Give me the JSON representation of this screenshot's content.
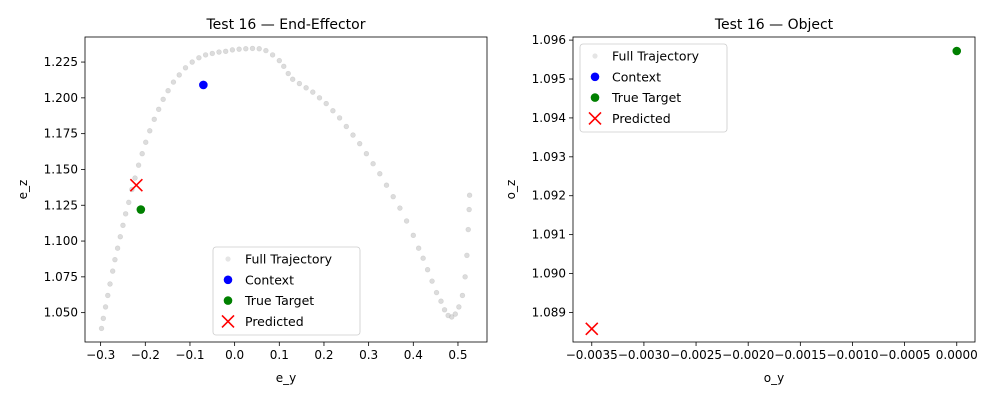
{
  "figure": {
    "background": "#ffffff"
  },
  "chart_data": [
    {
      "type": "scatter",
      "title": "Test 16 — End-Effector",
      "xlabel": "e_y",
      "ylabel": "e_z",
      "xlim": [
        -0.335,
        0.565
      ],
      "ylim": [
        1.0295,
        1.2425
      ],
      "xticks": [
        -0.3,
        -0.2,
        -0.1,
        0.0,
        0.1,
        0.2,
        0.3,
        0.4,
        0.5
      ],
      "xtick_labels": [
        "−0.3",
        "−0.2",
        "−0.1",
        "0.0",
        "0.1",
        "0.2",
        "0.3",
        "0.4",
        "0.5"
      ],
      "yticks": [
        1.05,
        1.075,
        1.1,
        1.125,
        1.15,
        1.175,
        1.2,
        1.225
      ],
      "ytick_labels": [
        "1.050",
        "1.075",
        "1.100",
        "1.125",
        "1.150",
        "1.175",
        "1.200",
        "1.225"
      ],
      "grid": false,
      "legend_position": "lower center",
      "series": [
        {
          "name": "Full Trajectory",
          "marker": "o-faint",
          "color": "#bfbfbf",
          "points": [
            [
              -0.298,
              1.039
            ],
            [
              -0.294,
              1.046
            ],
            [
              -0.289,
              1.054
            ],
            [
              -0.284,
              1.062
            ],
            [
              -0.279,
              1.07
            ],
            [
              -0.273,
              1.079
            ],
            [
              -0.268,
              1.087
            ],
            [
              -0.262,
              1.095
            ],
            [
              -0.256,
              1.103
            ],
            [
              -0.25,
              1.111
            ],
            [
              -0.244,
              1.119
            ],
            [
              -0.237,
              1.127
            ],
            [
              -0.23,
              1.136
            ],
            [
              -0.223,
              1.144
            ],
            [
              -0.215,
              1.153
            ],
            [
              -0.207,
              1.161
            ],
            [
              -0.199,
              1.169
            ],
            [
              -0.19,
              1.177
            ],
            [
              -0.18,
              1.185
            ],
            [
              -0.17,
              1.192
            ],
            [
              -0.16,
              1.199
            ],
            [
              -0.149,
              1.205
            ],
            [
              -0.137,
              1.211
            ],
            [
              -0.124,
              1.216
            ],
            [
              -0.11,
              1.221
            ],
            [
              -0.095,
              1.225
            ],
            [
              -0.08,
              1.228
            ],
            [
              -0.065,
              1.23
            ],
            [
              -0.05,
              1.231
            ],
            [
              -0.035,
              1.232
            ],
            [
              -0.02,
              1.2325
            ],
            [
              -0.005,
              1.2335
            ],
            [
              0.01,
              1.234
            ],
            [
              0.025,
              1.2343
            ],
            [
              0.04,
              1.2345
            ],
            [
              0.055,
              1.2343
            ],
            [
              0.07,
              1.233
            ],
            [
              0.085,
              1.23
            ],
            [
              0.1,
              1.226
            ],
            [
              0.11,
              1.222
            ],
            [
              0.12,
              1.217
            ],
            [
              0.13,
              1.213
            ],
            [
              0.145,
              1.21
            ],
            [
              0.16,
              1.207
            ],
            [
              0.175,
              1.204
            ],
            [
              0.19,
              1.2
            ],
            [
              0.205,
              1.196
            ],
            [
              0.22,
              1.191
            ],
            [
              0.235,
              1.186
            ],
            [
              0.25,
              1.18
            ],
            [
              0.265,
              1.174
            ],
            [
              0.28,
              1.168
            ],
            [
              0.295,
              1.161
            ],
            [
              0.31,
              1.154
            ],
            [
              0.325,
              1.147
            ],
            [
              0.34,
              1.139
            ],
            [
              0.355,
              1.131
            ],
            [
              0.37,
              1.123
            ],
            [
              0.385,
              1.114
            ],
            [
              0.4,
              1.104
            ],
            [
              0.412,
              1.095
            ],
            [
              0.422,
              1.088
            ],
            [
              0.432,
              1.08
            ],
            [
              0.442,
              1.072
            ],
            [
              0.452,
              1.064
            ],
            [
              0.462,
              1.058
            ],
            [
              0.47,
              1.052
            ],
            [
              0.478,
              1.048
            ],
            [
              0.486,
              1.047
            ],
            [
              0.494,
              1.049
            ],
            [
              0.502,
              1.054
            ],
            [
              0.51,
              1.062
            ],
            [
              0.516,
              1.075
            ],
            [
              0.52,
              1.09
            ],
            [
              0.523,
              1.108
            ],
            [
              0.525,
              1.122
            ],
            [
              0.526,
              1.132
            ]
          ]
        },
        {
          "name": "Context",
          "marker": "o",
          "color": "#0000ff",
          "points": [
            [
              -0.07,
              1.209
            ]
          ]
        },
        {
          "name": "True Target",
          "marker": "o",
          "color": "#008000",
          "points": [
            [
              -0.21,
              1.122
            ]
          ]
        },
        {
          "name": "Predicted",
          "marker": "x",
          "color": "#ff0000",
          "points": [
            [
              -0.22,
              1.139
            ]
          ]
        }
      ]
    },
    {
      "type": "scatter",
      "title": "Test 16 — Object",
      "xlabel": "o_y",
      "ylabel": "o_z",
      "xlim": [
        -0.00368,
        0.000175
      ],
      "ylim": [
        1.08824,
        1.09608
      ],
      "xticks": [
        -0.0035,
        -0.003,
        -0.0025,
        -0.002,
        -0.0015,
        -0.001,
        -0.0005,
        0.0
      ],
      "xtick_labels": [
        "−0.0035",
        "−0.0030",
        "−0.0025",
        "−0.0020",
        "−0.0015",
        "−0.0010",
        "−0.0005",
        "0.0000"
      ],
      "yticks": [
        1.089,
        1.09,
        1.091,
        1.092,
        1.093,
        1.094,
        1.095,
        1.096
      ],
      "ytick_labels": [
        "1.089",
        "1.090",
        "1.091",
        "1.092",
        "1.093",
        "1.094",
        "1.095",
        "1.096"
      ],
      "grid": false,
      "legend_position": "upper left",
      "series": [
        {
          "name": "Full Trajectory",
          "marker": "o-faint",
          "color": "#bfbfbf",
          "points": []
        },
        {
          "name": "Context",
          "marker": "o",
          "color": "#0000ff",
          "points": []
        },
        {
          "name": "True Target",
          "marker": "o",
          "color": "#008000",
          "points": [
            [
              0.0,
              1.09572
            ]
          ]
        },
        {
          "name": "Predicted",
          "marker": "x",
          "color": "#ff0000",
          "points": [
            [
              -0.0035,
              1.08858
            ]
          ]
        }
      ]
    }
  ]
}
